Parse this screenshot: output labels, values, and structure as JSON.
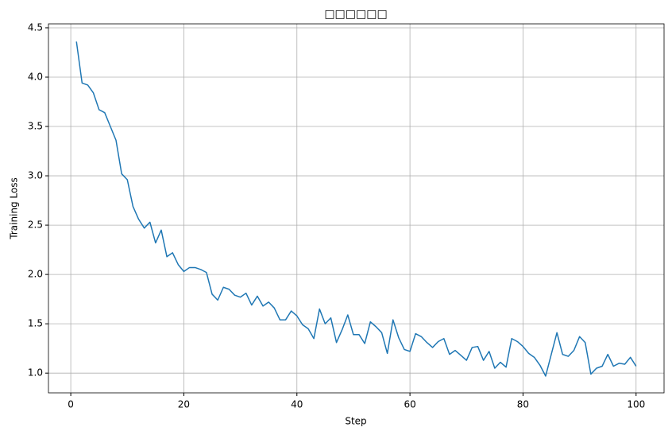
{
  "chart_data": {
    "type": "line",
    "title": "□□□□□□",
    "x_label": "Step",
    "y_label": "Training Loss",
    "x": [
      1,
      2,
      3,
      4,
      5,
      6,
      7,
      8,
      9,
      10,
      11,
      12,
      13,
      14,
      15,
      16,
      17,
      18,
      19,
      20,
      21,
      22,
      23,
      24,
      25,
      26,
      27,
      28,
      29,
      30,
      31,
      32,
      33,
      34,
      35,
      36,
      37,
      38,
      39,
      40,
      41,
      42,
      43,
      44,
      45,
      46,
      47,
      48,
      49,
      50,
      51,
      52,
      53,
      54,
      55,
      56,
      57,
      58,
      59,
      60,
      61,
      62,
      63,
      64,
      65,
      66,
      67,
      68,
      69,
      70,
      71,
      72,
      73,
      74,
      75,
      76,
      77,
      78,
      79,
      80,
      81,
      82,
      83,
      84,
      85,
      86,
      87,
      88,
      89,
      90,
      91,
      92,
      93,
      94,
      95,
      96,
      97,
      98,
      99,
      100
    ],
    "series": [
      {
        "color": "#1f77b4",
        "values": [
          4.36,
          3.94,
          3.92,
          3.84,
          3.67,
          3.64,
          3.5,
          3.36,
          3.02,
          2.96,
          2.69,
          2.56,
          2.47,
          2.53,
          2.32,
          2.45,
          2.18,
          2.22,
          2.1,
          2.03,
          2.07,
          2.07,
          2.05,
          2.02,
          1.8,
          1.74,
          1.87,
          1.85,
          1.79,
          1.77,
          1.81,
          1.69,
          1.78,
          1.68,
          1.72,
          1.66,
          1.54,
          1.54,
          1.63,
          1.58,
          1.49,
          1.45,
          1.35,
          1.65,
          1.5,
          1.56,
          1.31,
          1.44,
          1.59,
          1.39,
          1.39,
          1.3,
          1.52,
          1.47,
          1.41,
          1.2,
          1.54,
          1.36,
          1.24,
          1.22,
          1.4,
          1.37,
          1.31,
          1.26,
          1.32,
          1.35,
          1.19,
          1.23,
          1.18,
          1.13,
          1.26,
          1.27,
          1.13,
          1.22,
          1.05,
          1.11,
          1.06,
          1.35,
          1.32,
          1.27,
          1.2,
          1.16,
          1.08,
          0.97,
          1.19,
          1.41,
          1.19,
          1.17,
          1.23,
          1.37,
          1.31,
          0.99,
          1.05,
          1.07,
          1.19,
          1.07,
          1.1,
          1.09,
          1.16,
          1.07
        ]
      }
    ],
    "xlim": [
      -3.95,
      104.95
    ],
    "ylim": [
      0.8,
      4.54
    ],
    "xticks": [
      0,
      20,
      40,
      60,
      80,
      100
    ],
    "yticks": [
      {
        "value": 1,
        "label": "1.0"
      },
      1.5,
      {
        "value": 2,
        "label": "2.0"
      },
      2.5,
      {
        "value": 3,
        "label": "3.0"
      },
      3.5,
      {
        "value": 4,
        "label": "4.0"
      },
      4.5
    ],
    "grid": true
  }
}
